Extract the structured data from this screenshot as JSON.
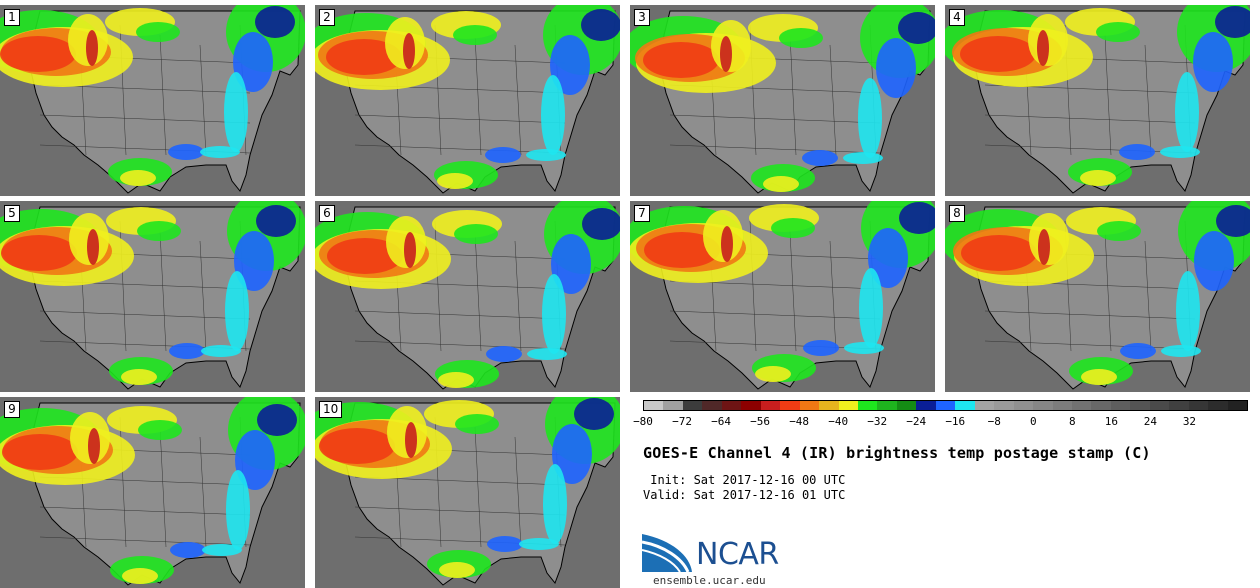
{
  "panels": [
    {
      "label": "1"
    },
    {
      "label": "2"
    },
    {
      "label": "3"
    },
    {
      "label": "4"
    },
    {
      "label": "5"
    },
    {
      "label": "6"
    },
    {
      "label": "7"
    },
    {
      "label": "8"
    },
    {
      "label": "9"
    },
    {
      "label": "10"
    }
  ],
  "colorbar": {
    "colors": [
      "#c8c8c8",
      "#a0a0a0",
      "#3c3c3c",
      "#502828",
      "#6e1414",
      "#8c0000",
      "#c81e1e",
      "#f03c14",
      "#f07814",
      "#e6b41e",
      "#f0f01e",
      "#1ee61e",
      "#1eb41e",
      "#148c14",
      "#0a1e96",
      "#1e64ff",
      "#1ee6f0",
      "#a4a4a4",
      "#9a9a9a",
      "#909090",
      "#868686",
      "#7c7c7c",
      "#727272",
      "#686868",
      "#5e5e5e",
      "#545454",
      "#4a4a4a",
      "#404040",
      "#363636",
      "#2c2c2c",
      "#222222"
    ],
    "ticks": [
      "−80",
      "−72",
      "−64",
      "−56",
      "−48",
      "−40",
      "−32",
      "−24",
      "−16",
      "−8",
      "0",
      "8",
      "16",
      "24",
      "32"
    ]
  },
  "title": "GOES-E Channel 4 (IR) brightness temp postage stamp (C)",
  "init_line": " Init: Sat 2017-12-16 00 UTC",
  "valid_line": "Valid: Sat 2017-12-16 01 UTC",
  "logo_text": "NCAR",
  "site": "ensemble.ucar.edu",
  "accent": "#1c4f91"
}
